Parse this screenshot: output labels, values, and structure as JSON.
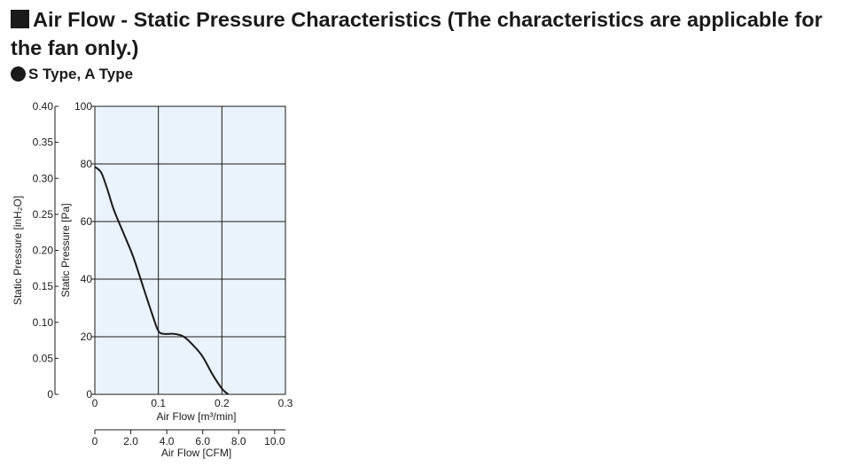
{
  "heading": {
    "text": "Air Flow - Static Pressure Characteristics (The characteristics are applicable for the fan only.)"
  },
  "subheading": {
    "text": "S Type, A Type"
  },
  "colors": {
    "plot_background": "#eaf2fb",
    "grid": "#1a1a1a",
    "curve": "#1a1a1a",
    "text": "#1a1a1a"
  },
  "chart_data": {
    "type": "line",
    "title": "",
    "xlabel": "Air Flow [m³/min]",
    "ylabel": "Static Pressure [Pa]",
    "xlim": [
      0,
      0.3
    ],
    "ylim": [
      0,
      100
    ],
    "x_ticks": [
      "0",
      "0.1",
      "0.2",
      "0.3"
    ],
    "y_ticks": [
      "0",
      "20",
      "40",
      "60",
      "80",
      "100"
    ],
    "secondary_x_axis": {
      "label": "Air Flow [CFM]",
      "range": [
        0,
        10.6
      ],
      "ticks": [
        "0",
        "2.0",
        "4.0",
        "6.0",
        "8.0",
        "10.0"
      ],
      "tick_values": [
        0,
        2,
        4,
        6,
        8,
        10
      ]
    },
    "secondary_y_axis": {
      "label": "Static Pressure [inH₂O]",
      "range": [
        0,
        0.4
      ],
      "ticks": [
        "0",
        "0.05",
        "0.10",
        "0.15",
        "0.20",
        "0.25",
        "0.30",
        "0.35",
        "0.40"
      ],
      "tick_values": [
        0,
        0.05,
        0.1,
        0.15,
        0.2,
        0.25,
        0.3,
        0.35,
        0.4
      ]
    },
    "grid": true,
    "series": [
      {
        "x": [
          0,
          0.01,
          0.02,
          0.03,
          0.045,
          0.06,
          0.075,
          0.09,
          0.1,
          0.11,
          0.125,
          0.14,
          0.155,
          0.17,
          0.185,
          0.2,
          0.21
        ],
        "y": [
          79,
          77,
          71,
          64,
          56,
          48,
          38,
          28,
          22,
          21,
          21,
          20,
          17,
          13,
          7,
          2,
          0
        ]
      }
    ]
  }
}
